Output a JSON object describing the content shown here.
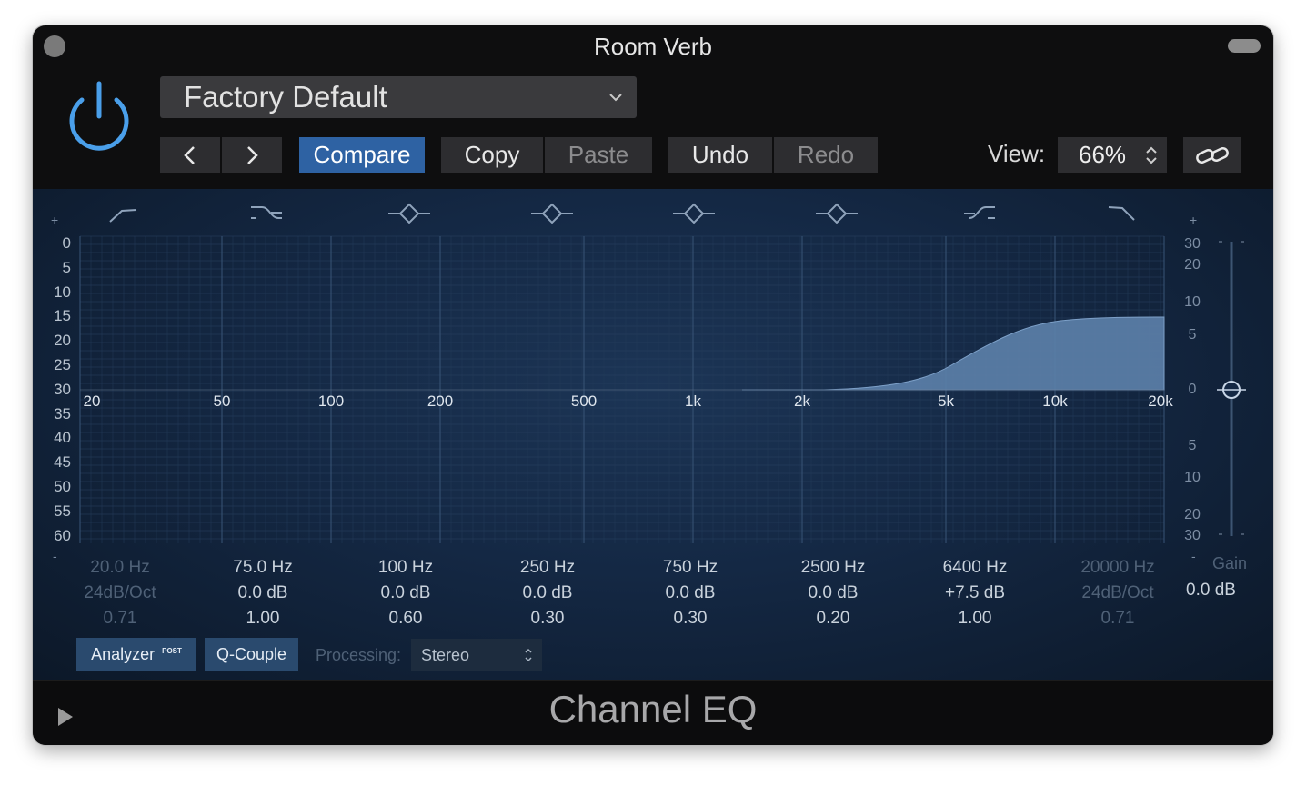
{
  "window": {
    "title": "Room Verb",
    "footer_title": "Channel EQ"
  },
  "toolbar": {
    "preset": "Factory Default",
    "prev": "‹",
    "next": "›",
    "compare": "Compare",
    "copy": "Copy",
    "paste": "Paste",
    "undo": "Undo",
    "redo": "Redo",
    "view_label": "View:",
    "view_value": "66%"
  },
  "eq": {
    "left_scale_plus": "+",
    "left_scale_minus": "-",
    "left_scale": [
      "0",
      "5",
      "10",
      "15",
      "20",
      "25",
      "30",
      "35",
      "40",
      "45",
      "50",
      "55",
      "60"
    ],
    "right_scale_plus": "+",
    "right_scale_minus": "-",
    "right_scale_top": [
      "30",
      "20",
      "10",
      "5",
      "0"
    ],
    "right_scale_bottom": [
      "5",
      "10",
      "20",
      "30"
    ],
    "freq_labels": [
      "20",
      "50",
      "100",
      "200",
      "500",
      "1k",
      "2k",
      "5k",
      "10k",
      "20k"
    ],
    "bands": [
      {
        "freq": "20.0 Hz",
        "gain": "24dB/Oct",
        "q": "0.71",
        "enabled": false
      },
      {
        "freq": "75.0 Hz",
        "gain": "0.0 dB",
        "q": "1.00",
        "enabled": true
      },
      {
        "freq": "100 Hz",
        "gain": "0.0 dB",
        "q": "0.60",
        "enabled": true
      },
      {
        "freq": "250 Hz",
        "gain": "0.0 dB",
        "q": "0.30",
        "enabled": true
      },
      {
        "freq": "750 Hz",
        "gain": "0.0 dB",
        "q": "0.30",
        "enabled": true
      },
      {
        "freq": "2500 Hz",
        "gain": "0.0 dB",
        "q": "0.20",
        "enabled": true
      },
      {
        "freq": "6400 Hz",
        "gain": "+7.5 dB",
        "q": "1.00",
        "enabled": true
      },
      {
        "freq": "20000 Hz",
        "gain": "24dB/Oct",
        "q": "0.71",
        "enabled": false
      }
    ],
    "gain_label": "Gain",
    "gain_value": "0.0 dB",
    "band_icons": [
      "low-cut-icon",
      "low-shelf-icon",
      "bell-icon",
      "bell-icon",
      "bell-icon",
      "bell-icon",
      "high-shelf-icon",
      "high-cut-icon"
    ]
  },
  "controls": {
    "analyzer": "Analyzer",
    "analyzer_badge": "POST",
    "qcouple": "Q-Couple",
    "processing_label": "Processing:",
    "processing_value": "Stereo"
  },
  "colors": {
    "accent": "#2e62a3",
    "curve_fill": "#5b7fa8",
    "panel": "#142844"
  }
}
